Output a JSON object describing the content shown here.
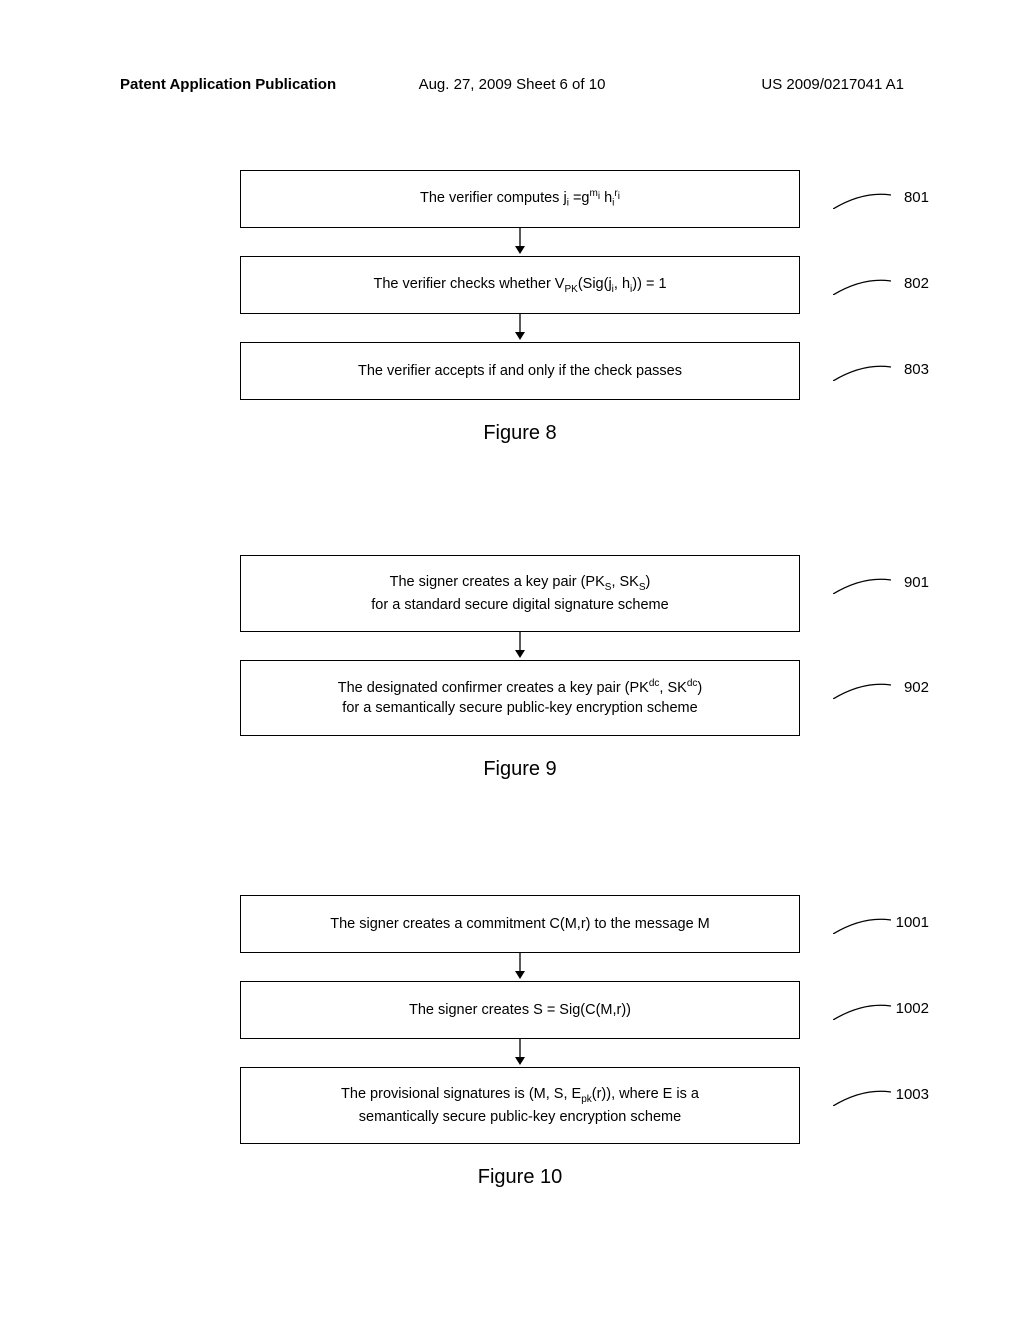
{
  "header": {
    "left": "Patent Application Publication",
    "center": "Aug. 27, 2009  Sheet 6 of 10",
    "right": "US 2009/0217041 A1"
  },
  "figures": {
    "fig8": {
      "caption": "Figure 8",
      "boxes": [
        {
          "num": "801",
          "html": "The verifier computes j<span class='sub'>i</span> =g<span class='sup'>m<span class='sub'>i</span></span> h<span class='sub'>i</span><span class='sup'>r<span class='sub'>i</span></span>"
        },
        {
          "num": "802",
          "html": "The verifier checks whether V<span class='sub'>PK</span>(Sig(j<span class='sub'>i</span>, h<span class='sub'>i</span>)) = 1"
        },
        {
          "num": "803",
          "html": "The verifier accepts if and only if the check passes"
        }
      ]
    },
    "fig9": {
      "caption": "Figure 9",
      "boxes": [
        {
          "num": "901",
          "html": "The signer creates a key pair (PK<span class='sub'>S</span>, SK<span class='sub'>S</span>)<br>for a standard secure digital signature scheme"
        },
        {
          "num": "902",
          "html": "The designated confirmer creates a key pair (PK<span class='sup'>dc</span>, SK<span class='sup'>dc</span>)<br>for a semantically secure public-key encryption scheme"
        }
      ]
    },
    "fig10": {
      "caption": "Figure 10",
      "boxes": [
        {
          "num": "1001",
          "html": "The signer creates a commitment C(M,r) to the message M"
        },
        {
          "num": "1002",
          "html": "The signer creates S = Sig(C(M,r))"
        },
        {
          "num": "1003",
          "html": "The provisional signatures is (M, S, E<span class='sub'>pk</span>(r)), where E is a<br>semantically secure public-key encryption scheme"
        }
      ]
    }
  },
  "style": {
    "box_border": "#000000",
    "background": "#ffffff",
    "font_family": "Arial",
    "box_font_size": 14.5,
    "caption_font_size": 20,
    "header_font_size": 15,
    "label_font_size": 15
  }
}
